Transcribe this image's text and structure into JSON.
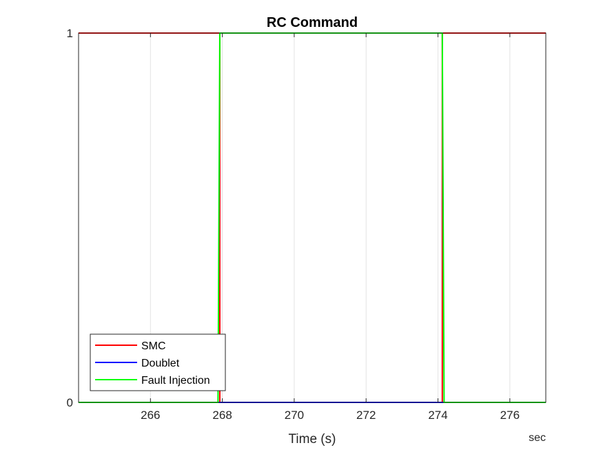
{
  "chart_data": {
    "type": "line",
    "title": "RC Command",
    "xlabel": "Time (s)",
    "x_unit": "sec",
    "xlim": [
      264,
      277
    ],
    "ylim": [
      0,
      1
    ],
    "xticks": [
      266,
      268,
      270,
      272,
      274,
      276
    ],
    "yticks": [
      0,
      1
    ],
    "grid": "vertical",
    "legend_position": "bottom-left",
    "series": [
      {
        "name": "SMC",
        "color": "#ff0000",
        "x": [
          264,
          267.93,
          267.93,
          274.12,
          274.12,
          277
        ],
        "y": [
          1,
          1,
          0,
          0,
          1,
          1
        ]
      },
      {
        "name": "Doublet",
        "color": "#0000ff",
        "x": [
          264,
          277
        ],
        "y": [
          0,
          0
        ]
      },
      {
        "name": "Fault Injection",
        "color": "#00ff00",
        "x": [
          264,
          267.88,
          267.93,
          274.12,
          274.17,
          277
        ],
        "y": [
          0,
          0,
          1,
          1,
          0,
          0
        ]
      }
    ]
  }
}
